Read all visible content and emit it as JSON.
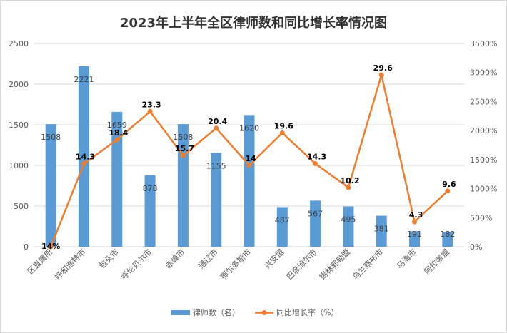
{
  "chart_data": {
    "type": "bar+line",
    "title": "2023年上半年全区律师数和同比增长率情况图",
    "categories": [
      "区直属所",
      "呼和浩特市",
      "包头市",
      "呼伦贝尔市",
      "赤峰市",
      "通辽市",
      "鄂尔多斯市",
      "兴安盟",
      "巴彦淖尔市",
      "锡林郭勒盟",
      "乌兰察布市",
      "乌海市",
      "阿拉善盟"
    ],
    "series": [
      {
        "name": "律师数（名）",
        "type": "bar",
        "axis": "left",
        "color": "#5b9bd5",
        "values": [
          1508,
          2221,
          1659,
          878,
          1508,
          1155,
          1620,
          487,
          567,
          495,
          381,
          191,
          182
        ],
        "labels": [
          "1508",
          "2221",
          "1659",
          "878",
          "1508",
          "1155",
          "1620",
          "487",
          "567",
          "495",
          "381",
          "191",
          "182"
        ]
      },
      {
        "name": "同比增长率（%）",
        "type": "line",
        "axis": "right",
        "color": "#ed7d31",
        "values": [
          14,
          14.3,
          18.4,
          23.3,
          15.7,
          20.4,
          14,
          19.6,
          14.3,
          10.2,
          29.6,
          4.3,
          9.6
        ],
        "plotted_percent": [
          0,
          1430,
          1840,
          2330,
          1570,
          2040,
          1400,
          1960,
          1430,
          1020,
          2960,
          430,
          960
        ],
        "labels": [
          "14%",
          "14.3",
          "18.4",
          "23.3",
          "15.7",
          "20.4",
          "14",
          "19.6",
          "14.3",
          "10.2",
          "29.6",
          "4.3",
          "9.6"
        ]
      }
    ],
    "y_left": {
      "min": 0,
      "max": 2500,
      "ticks": [
        "0",
        "500",
        "1000",
        "1500",
        "2000",
        "2500"
      ]
    },
    "y_right": {
      "min": 0,
      "max": 3500,
      "ticks": [
        "0%",
        "500%",
        "1000%",
        "1500%",
        "2000%",
        "2500%",
        "3000%",
        "3500%"
      ]
    },
    "legend_position": "bottom",
    "grid": true
  }
}
